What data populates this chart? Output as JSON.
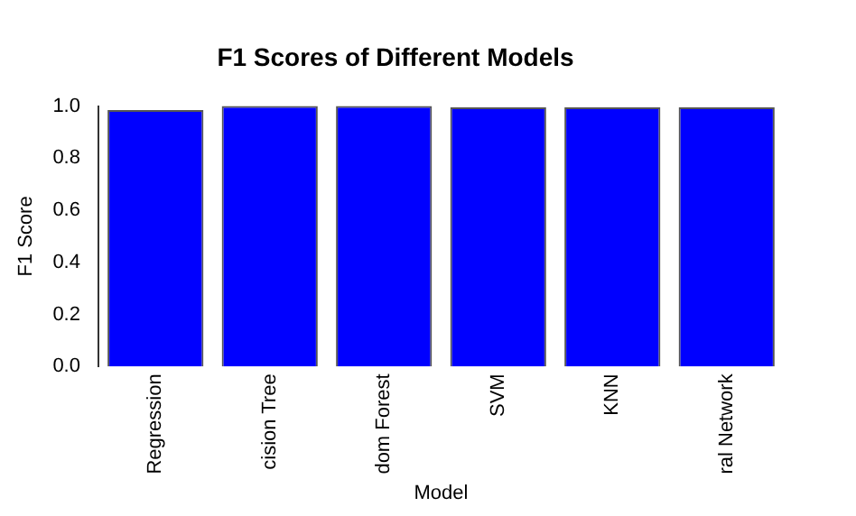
{
  "chart_data": {
    "type": "bar",
    "title": "F1 Scores of Different Models",
    "xlabel": "Model",
    "ylabel": "F1 Score",
    "categories": [
      "Regression",
      "cision Tree",
      "dom Forest",
      "SVM",
      "KNN",
      "ral Network"
    ],
    "values": [
      0.985,
      1.0,
      1.0,
      0.995,
      0.995,
      0.995
    ],
    "color": "#0000ff",
    "ylim": [
      0,
      1
    ],
    "yticks": [
      {
        "value": 0,
        "label": "0.0"
      },
      {
        "value": 0.2,
        "label": "0.2"
      },
      {
        "value": 0.4,
        "label": "0.4"
      },
      {
        "value": 0.6,
        "label": "0.6"
      },
      {
        "value": 0.8,
        "label": "0.8"
      },
      {
        "value": 1,
        "label": "1.0"
      }
    ],
    "grid": false,
    "legend": false
  }
}
